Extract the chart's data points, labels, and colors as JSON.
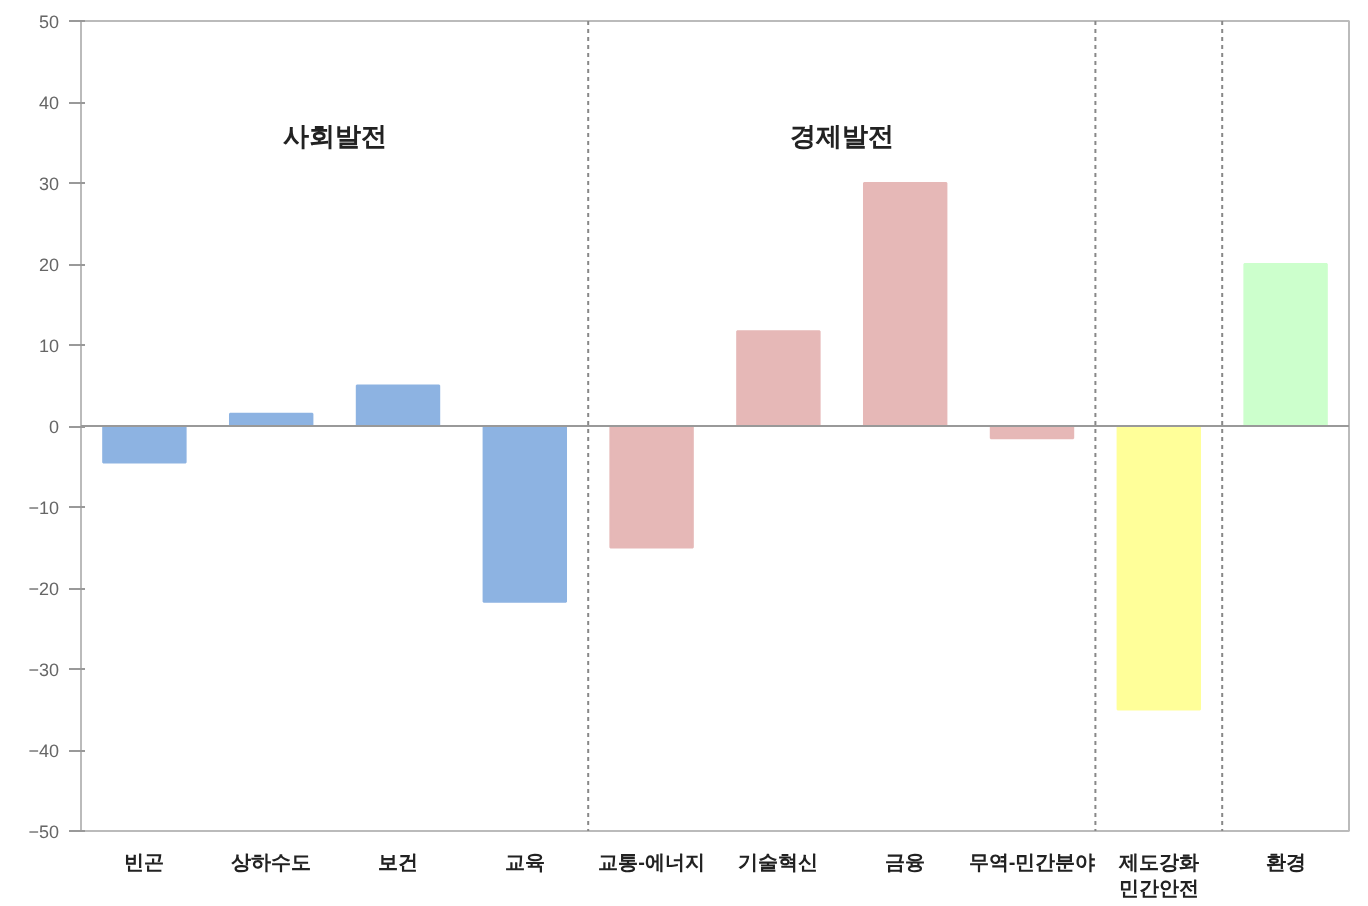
{
  "chart_data": {
    "type": "bar",
    "categories": [
      "빈곤",
      "상하수도",
      "보건",
      "교육",
      "교통-에너지",
      "기술혁신",
      "금융",
      "무역-민간분야",
      "제도강화\n민간안전",
      "환경"
    ],
    "values": [
      -4.5,
      1.5,
      5,
      -21.7,
      -15,
      11.7,
      30,
      -1.5,
      -35,
      20
    ],
    "colors": [
      "#8db3e2",
      "#8db3e2",
      "#8db3e2",
      "#8db3e2",
      "#e6b8b7",
      "#e6b8b7",
      "#e6b8b7",
      "#e6b8b7",
      "#ffff99",
      "#ccffcc"
    ],
    "ylim": [
      -50,
      50
    ],
    "yticks": [
      -50,
      -40,
      -30,
      -20,
      -10,
      0,
      10,
      20,
      30,
      40,
      50
    ],
    "grid": false,
    "annotations": [
      "사회발전",
      "경제발전"
    ]
  }
}
